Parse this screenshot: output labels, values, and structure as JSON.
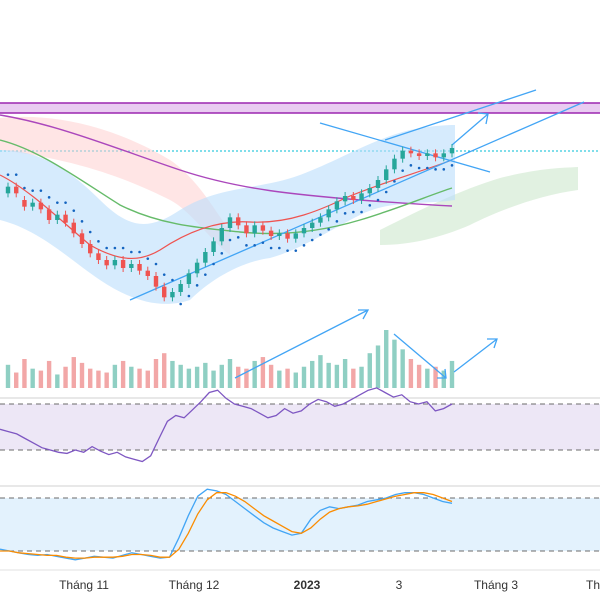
{
  "chart_data": {
    "type": "candlestick",
    "x_axis": {
      "ticks": [
        "Tháng 11",
        "Tháng 12",
        "2023",
        "3",
        "Tháng 3",
        "Th"
      ]
    },
    "price": {
      "candles": [
        [
          1.0,
          1.05
        ],
        [
          1.05,
          1.0
        ],
        [
          0.95,
          0.9
        ],
        [
          0.9,
          0.93
        ],
        [
          0.93,
          0.88
        ],
        [
          0.88,
          0.8
        ],
        [
          0.8,
          0.84
        ],
        [
          0.84,
          0.78
        ],
        [
          0.78,
          0.7
        ],
        [
          0.7,
          0.62
        ],
        [
          0.62,
          0.55
        ],
        [
          0.55,
          0.5
        ],
        [
          0.5,
          0.46
        ],
        [
          0.46,
          0.5
        ],
        [
          0.5,
          0.44
        ],
        [
          0.44,
          0.47
        ],
        [
          0.47,
          0.42
        ],
        [
          0.42,
          0.38
        ],
        [
          0.38,
          0.3
        ],
        [
          0.3,
          0.22
        ],
        [
          0.22,
          0.26
        ],
        [
          0.26,
          0.32
        ],
        [
          0.32,
          0.4
        ],
        [
          0.4,
          0.48
        ],
        [
          0.48,
          0.56
        ],
        [
          0.56,
          0.64
        ],
        [
          0.64,
          0.74
        ],
        [
          0.74,
          0.82
        ],
        [
          0.82,
          0.76
        ],
        [
          0.76,
          0.7
        ],
        [
          0.7,
          0.76
        ],
        [
          0.76,
          0.72
        ],
        [
          0.72,
          0.68
        ],
        [
          0.68,
          0.7
        ],
        [
          0.7,
          0.66
        ],
        [
          0.66,
          0.7
        ],
        [
          0.7,
          0.74
        ],
        [
          0.74,
          0.78
        ],
        [
          0.78,
          0.82
        ],
        [
          0.82,
          0.88
        ],
        [
          0.88,
          0.94
        ],
        [
          0.94,
          0.98
        ],
        [
          0.98,
          0.95
        ],
        [
          0.95,
          1.0
        ],
        [
          1.0,
          1.04
        ],
        [
          1.04,
          1.1
        ],
        [
          1.1,
          1.18
        ],
        [
          1.18,
          1.26
        ],
        [
          1.26,
          1.32
        ],
        [
          1.32,
          1.3
        ],
        [
          1.3,
          1.28
        ],
        [
          1.28,
          1.3
        ],
        [
          1.3,
          1.27
        ],
        [
          1.27,
          1.3
        ],
        [
          1.3,
          1.34
        ]
      ],
      "channel_lines": [
        "rising-support",
        "rising-resistance",
        "descending-trend"
      ],
      "resistance_band": "purple",
      "ichimoku_cloud": true
    },
    "volume": {
      "values": [
        12,
        8,
        15,
        10,
        9,
        14,
        7,
        11,
        16,
        13,
        10,
        9,
        8,
        12,
        14,
        11,
        10,
        9,
        15,
        18,
        14,
        12,
        10,
        11,
        13,
        9,
        12,
        15,
        11,
        10,
        14,
        16,
        12,
        9,
        10,
        8,
        11,
        14,
        17,
        13,
        12,
        15,
        10,
        11,
        18,
        22,
        30,
        25,
        20,
        15,
        12,
        10,
        11,
        9,
        14
      ],
      "up_color": "#8fcfc3",
      "down_color": "#f2a7a7"
    },
    "rsi": {
      "values": [
        48,
        46,
        44,
        40,
        36,
        32,
        30,
        28,
        27,
        30,
        28,
        33,
        29,
        26,
        28,
        24,
        22,
        20,
        25,
        40,
        55,
        60,
        58,
        65,
        72,
        80,
        82,
        75,
        70,
        68,
        66,
        62,
        58,
        60,
        66,
        62,
        64,
        70,
        74,
        72,
        68,
        70,
        74,
        78,
        82,
        84,
        80,
        76,
        78,
        72,
        70,
        72,
        64,
        66,
        70
      ],
      "levels": [
        70,
        30
      ],
      "line_color": "#7e57c2"
    },
    "stoch": {
      "k": [
        22,
        20,
        18,
        16,
        15,
        16,
        14,
        12,
        10,
        12,
        14,
        13,
        12,
        15,
        18,
        16,
        14,
        12,
        13,
        35,
        60,
        82,
        90,
        88,
        84,
        76,
        68,
        60,
        52,
        46,
        42,
        38,
        40,
        56,
        66,
        70,
        68,
        70,
        72,
        76,
        78,
        80,
        84,
        86,
        86,
        84,
        80,
        76,
        74
      ],
      "d": [
        20,
        20,
        18,
        17,
        16,
        15,
        15,
        13,
        12,
        12,
        13,
        13,
        13,
        14,
        16,
        16,
        15,
        13,
        13,
        22,
        40,
        62,
        78,
        86,
        86,
        82,
        76,
        68,
        60,
        54,
        48,
        42,
        40,
        46,
        56,
        64,
        68,
        70,
        71,
        73,
        76,
        79,
        82,
        84,
        86,
        86,
        84,
        80,
        76
      ],
      "levels": [
        80,
        20
      ],
      "k_color": "#42a5f5",
      "d_color": "#fb8c00"
    }
  }
}
